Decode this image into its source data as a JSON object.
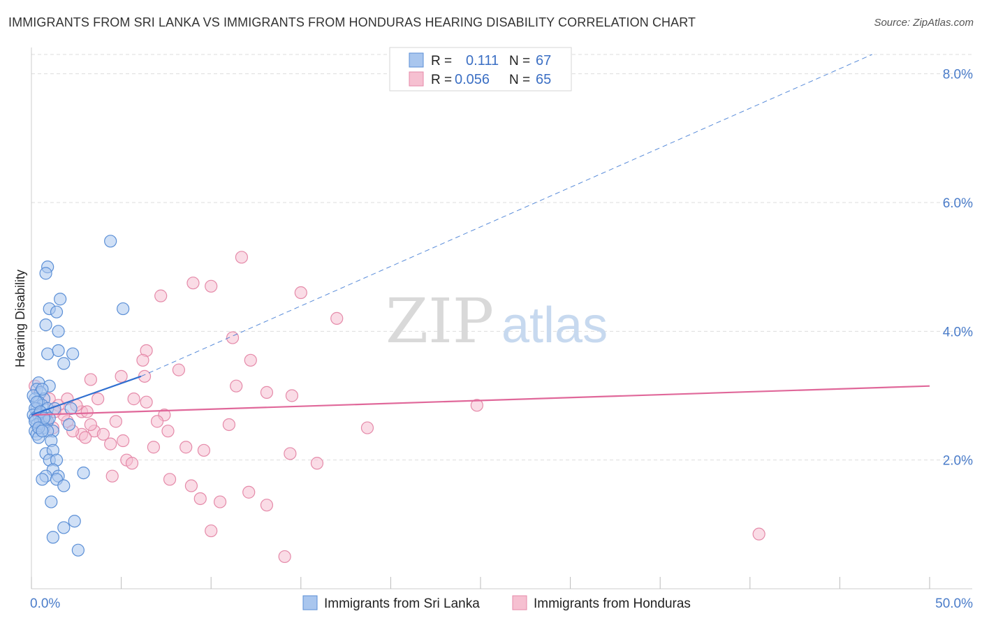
{
  "title": "IMMIGRANTS FROM SRI LANKA VS IMMIGRANTS FROM HONDURAS HEARING DISABILITY CORRELATION CHART",
  "source": "Source: ZipAtlas.com",
  "watermark": {
    "zip": "ZIP",
    "atlas": "atlas"
  },
  "legend_top": {
    "rows": [
      {
        "r_label": "R =",
        "r_value": "0.111",
        "n_label": "N =",
        "n_value": "67"
      },
      {
        "r_label": "R =",
        "r_value": "0.056",
        "n_label": "N =",
        "n_value": "65"
      }
    ]
  },
  "legend_bottom": {
    "items": [
      {
        "label": "Immigrants from Sri Lanka"
      },
      {
        "label": "Immigrants from Honduras"
      }
    ]
  },
  "colors": {
    "blue_fill": "#a9c6ee",
    "blue_stroke": "#5b8fd6",
    "blue_line": "#2f6fd0",
    "pink_fill": "#f6c0d1",
    "pink_stroke": "#e58aa9",
    "pink_line": "#e0689a",
    "grid": "#dddddd",
    "tick_text": "#4a7cc9"
  },
  "chart_data": {
    "type": "scatter",
    "title": "IMMIGRANTS FROM SRI LANKA VS IMMIGRANTS FROM HONDURAS HEARING DISABILITY CORRELATION CHART",
    "xlabel": "",
    "ylabel": "Hearing Disability",
    "xlim": [
      0,
      50
    ],
    "ylim": [
      0,
      8.3
    ],
    "x_tick_labels": [
      {
        "value": 0,
        "label": "0.0%"
      },
      {
        "value": 50,
        "label": "50.0%"
      }
    ],
    "y_tick_labels": [
      {
        "value": 2,
        "label": "2.0%"
      },
      {
        "value": 4,
        "label": "4.0%"
      },
      {
        "value": 6,
        "label": "6.0%"
      },
      {
        "value": 8,
        "label": "8.0%"
      }
    ],
    "grid": true,
    "series": [
      {
        "name": "Immigrants from Sri Lanka",
        "r": 0.111,
        "n": 67,
        "trend_solid": [
          [
            0,
            2.7
          ],
          [
            6.1,
            3.3
          ]
        ],
        "trend_dashed": [
          [
            6.1,
            3.3
          ],
          [
            46.8,
            8.3
          ]
        ],
        "points": [
          [
            4.4,
            5.4
          ],
          [
            0.9,
            5.0
          ],
          [
            0.8,
            4.9
          ],
          [
            1.6,
            4.5
          ],
          [
            1.0,
            4.35
          ],
          [
            1.4,
            4.3
          ],
          [
            5.1,
            4.35
          ],
          [
            0.8,
            4.1
          ],
          [
            1.5,
            4.0
          ],
          [
            0.9,
            3.65
          ],
          [
            1.5,
            3.7
          ],
          [
            2.3,
            3.65
          ],
          [
            1.8,
            3.5
          ],
          [
            0.4,
            3.2
          ],
          [
            1.0,
            3.15
          ],
          [
            0.3,
            3.1
          ],
          [
            0.5,
            3.05
          ],
          [
            0.7,
            2.95
          ],
          [
            0.2,
            2.95
          ],
          [
            0.4,
            2.9
          ],
          [
            0.6,
            2.85
          ],
          [
            0.3,
            2.8
          ],
          [
            0.2,
            2.8
          ],
          [
            0.9,
            2.8
          ],
          [
            1.3,
            2.8
          ],
          [
            2.2,
            2.8
          ],
          [
            0.1,
            2.7
          ],
          [
            0.4,
            2.7
          ],
          [
            0.8,
            2.7
          ],
          [
            0.2,
            2.65
          ],
          [
            0.5,
            2.6
          ],
          [
            0.9,
            2.6
          ],
          [
            1.0,
            2.65
          ],
          [
            0.3,
            2.55
          ],
          [
            0.6,
            2.5
          ],
          [
            0.2,
            2.45
          ],
          [
            0.7,
            2.5
          ],
          [
            1.2,
            2.45
          ],
          [
            0.9,
            2.45
          ],
          [
            2.1,
            2.55
          ],
          [
            0.3,
            2.4
          ],
          [
            0.4,
            2.35
          ],
          [
            1.1,
            2.3
          ],
          [
            0.8,
            2.1
          ],
          [
            1.2,
            2.15
          ],
          [
            1.0,
            2.0
          ],
          [
            1.4,
            2.0
          ],
          [
            1.2,
            1.85
          ],
          [
            0.8,
            1.75
          ],
          [
            1.5,
            1.75
          ],
          [
            0.6,
            1.7
          ],
          [
            1.4,
            1.7
          ],
          [
            2.9,
            1.8
          ],
          [
            1.8,
            1.6
          ],
          [
            1.1,
            1.35
          ],
          [
            2.4,
            1.05
          ],
          [
            1.8,
            0.95
          ],
          [
            1.2,
            0.8
          ],
          [
            2.6,
            0.6
          ],
          [
            0.1,
            3.0
          ],
          [
            0.6,
            3.1
          ],
          [
            0.3,
            2.9
          ],
          [
            0.5,
            2.75
          ],
          [
            0.7,
            2.65
          ],
          [
            0.2,
            2.6
          ],
          [
            0.4,
            2.5
          ],
          [
            0.6,
            2.45
          ]
        ]
      },
      {
        "name": "Immigrants from Honduras",
        "r": 0.056,
        "n": 65,
        "trend_solid": [
          [
            0,
            2.7
          ],
          [
            50,
            3.15
          ]
        ],
        "points": [
          [
            11.7,
            5.15
          ],
          [
            9.0,
            4.75
          ],
          [
            10.0,
            4.7
          ],
          [
            7.2,
            4.55
          ],
          [
            15.0,
            4.6
          ],
          [
            17.0,
            4.2
          ],
          [
            11.2,
            3.9
          ],
          [
            6.4,
            3.7
          ],
          [
            6.2,
            3.55
          ],
          [
            12.2,
            3.55
          ],
          [
            8.2,
            3.4
          ],
          [
            3.3,
            3.25
          ],
          [
            5.0,
            3.3
          ],
          [
            6.3,
            3.3
          ],
          [
            11.4,
            3.15
          ],
          [
            13.1,
            3.05
          ],
          [
            14.5,
            3.0
          ],
          [
            0.2,
            3.15
          ],
          [
            1.0,
            2.95
          ],
          [
            1.5,
            2.85
          ],
          [
            3.7,
            2.95
          ],
          [
            5.7,
            2.95
          ],
          [
            6.4,
            2.9
          ],
          [
            2.8,
            2.75
          ],
          [
            3.1,
            2.75
          ],
          [
            7.4,
            2.7
          ],
          [
            2.0,
            2.6
          ],
          [
            4.7,
            2.6
          ],
          [
            7.0,
            2.6
          ],
          [
            11.0,
            2.55
          ],
          [
            18.7,
            2.5
          ],
          [
            24.8,
            2.85
          ],
          [
            3.5,
            2.45
          ],
          [
            4.0,
            2.4
          ],
          [
            7.6,
            2.45
          ],
          [
            2.8,
            2.4
          ],
          [
            4.4,
            2.25
          ],
          [
            5.1,
            2.3
          ],
          [
            6.8,
            2.2
          ],
          [
            8.6,
            2.2
          ],
          [
            9.6,
            2.15
          ],
          [
            14.4,
            2.1
          ],
          [
            5.3,
            2.0
          ],
          [
            5.6,
            1.95
          ],
          [
            15.9,
            1.95
          ],
          [
            4.5,
            1.75
          ],
          [
            7.7,
            1.7
          ],
          [
            8.9,
            1.6
          ],
          [
            12.1,
            1.5
          ],
          [
            9.4,
            1.4
          ],
          [
            10.5,
            1.35
          ],
          [
            13.1,
            1.3
          ],
          [
            10.0,
            0.9
          ],
          [
            14.1,
            0.5
          ],
          [
            40.5,
            0.85
          ],
          [
            0.5,
            2.55
          ],
          [
            1.2,
            2.5
          ],
          [
            2.3,
            2.45
          ],
          [
            3.0,
            2.35
          ],
          [
            1.8,
            2.7
          ],
          [
            2.5,
            2.85
          ],
          [
            0.8,
            2.6
          ],
          [
            1.3,
            2.75
          ],
          [
            2.0,
            2.95
          ],
          [
            3.3,
            2.55
          ]
        ]
      }
    ]
  }
}
